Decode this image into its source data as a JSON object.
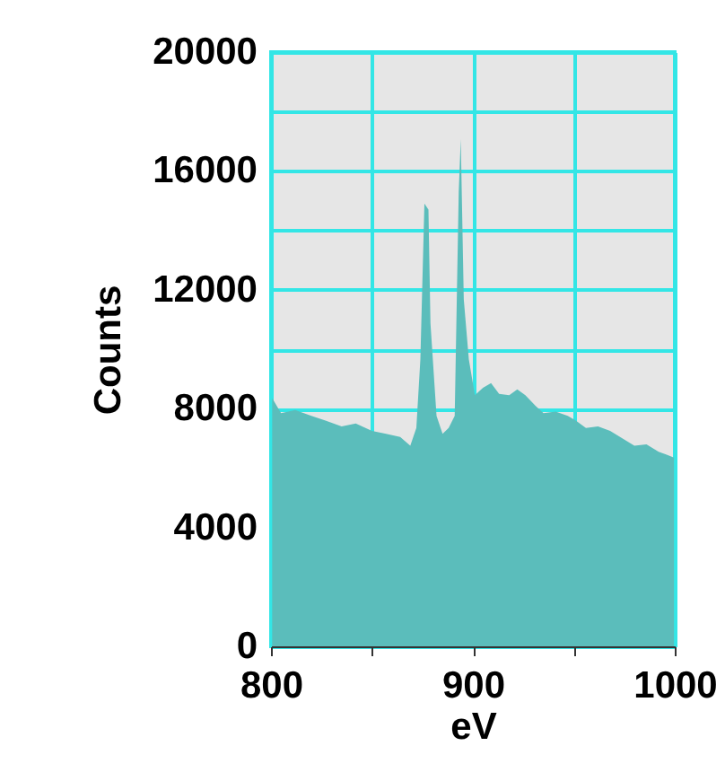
{
  "chart_data": {
    "type": "area",
    "xlabel": "eV",
    "ylabel": "Counts",
    "x": [
      800.6,
      805,
      812,
      820,
      827,
      835,
      842,
      850,
      857,
      864,
      869,
      872,
      874,
      876,
      878,
      879,
      882,
      885,
      888,
      891,
      893,
      894,
      895.5,
      898,
      901,
      905,
      909,
      913,
      918,
      922,
      926,
      931,
      935,
      941,
      947,
      951,
      956,
      962,
      968,
      974,
      980,
      986,
      992,
      996,
      999.6
    ],
    "series": [
      {
        "color": "#5bbdbb",
        "values": [
          8350,
          7850,
          7950,
          7760,
          7600,
          7400,
          7500,
          7250,
          7150,
          7050,
          6750,
          7350,
          9660,
          14900,
          14700,
          10870,
          7760,
          7150,
          7350,
          7760,
          15300,
          17070,
          11680,
          9660,
          8450,
          8700,
          8860,
          8500,
          8450,
          8650,
          8450,
          8100,
          7850,
          7900,
          7760,
          7600,
          7350,
          7400,
          7250,
          7000,
          6750,
          6800,
          6550,
          6450,
          6350
        ]
      }
    ],
    "xlim": [
      800,
      1000
    ],
    "ylim": [
      0,
      20000
    ],
    "xticks": [
      800,
      {
        "value": 850,
        "label": null
      },
      900,
      {
        "value": 950,
        "label": null
      },
      1000
    ],
    "yticks": [
      0,
      4000,
      8000,
      {
        "value": 10000,
        "label": null
      },
      12000,
      {
        "value": 14000,
        "label": null
      },
      16000,
      {
        "value": 18000,
        "label": null
      },
      20000
    ],
    "grid": true
  }
}
